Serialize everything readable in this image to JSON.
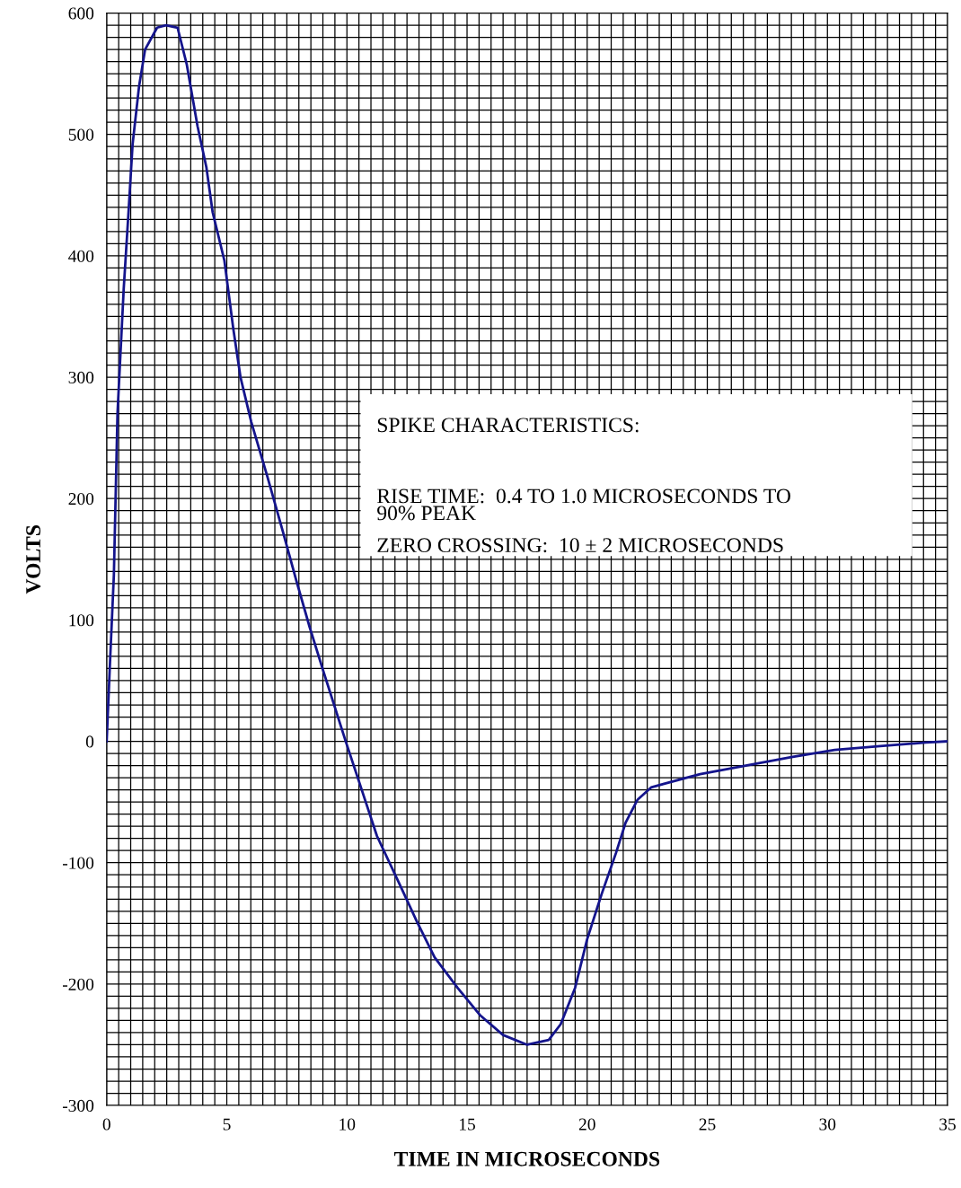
{
  "chart_data": {
    "type": "line",
    "xlabel": "TIME IN MICROSECONDS",
    "ylabel": "VOLTS",
    "xlim": [
      0,
      35
    ],
    "ylim": [
      -300,
      600
    ],
    "xticks": [
      0,
      5,
      10,
      15,
      20,
      25,
      30,
      35
    ],
    "yticks": [
      -300,
      -200,
      -100,
      0,
      100,
      200,
      300,
      400,
      500,
      600
    ],
    "grid": true,
    "annotations": [
      "SPIKE CHARACTERISTICS:",
      "RISE TIME:  0.4 TO 1.0 MICROSECONDS TO\n90% PEAK",
      "ZERO CROSSING:  10 ± 2 MICROSECONDS"
    ],
    "series": [
      {
        "color": "#14148c",
        "x": [
          0,
          0.15,
          0.3,
          0.45,
          0.71,
          0.9,
          1.08,
          1.35,
          1.6,
          2.1,
          2.47,
          2.95,
          3.33,
          3.78,
          4.15,
          4.41,
          4.9,
          5.27,
          5.57,
          6.02,
          6.69,
          7.33,
          7.9,
          8.45,
          9.0,
          9.95,
          10.5,
          11.25,
          12.2,
          12.9,
          13.65,
          14.6,
          15.56,
          16.5,
          17.5,
          18.4,
          18.9,
          19.5,
          20.0,
          20.6,
          21.2,
          21.6,
          22.1,
          22.66,
          23.2,
          24.7,
          26.6,
          28.5,
          30.3,
          32.2,
          34.1,
          35
        ],
        "values": [
          0,
          70,
          137,
          270,
          373,
          433,
          492,
          540,
          570,
          588,
          590,
          588,
          558,
          507,
          473,
          436,
          396,
          340,
          300,
          263,
          218,
          173,
          132,
          94,
          59,
          0,
          -33,
          -78,
          -118,
          -148,
          -178,
          -203,
          -226,
          -242,
          -250,
          -246,
          -233,
          -203,
          -163,
          -126,
          -92,
          -67,
          -48,
          -38,
          -35,
          -27,
          -20,
          -13,
          -7,
          -4,
          -1,
          0
        ]
      }
    ]
  }
}
